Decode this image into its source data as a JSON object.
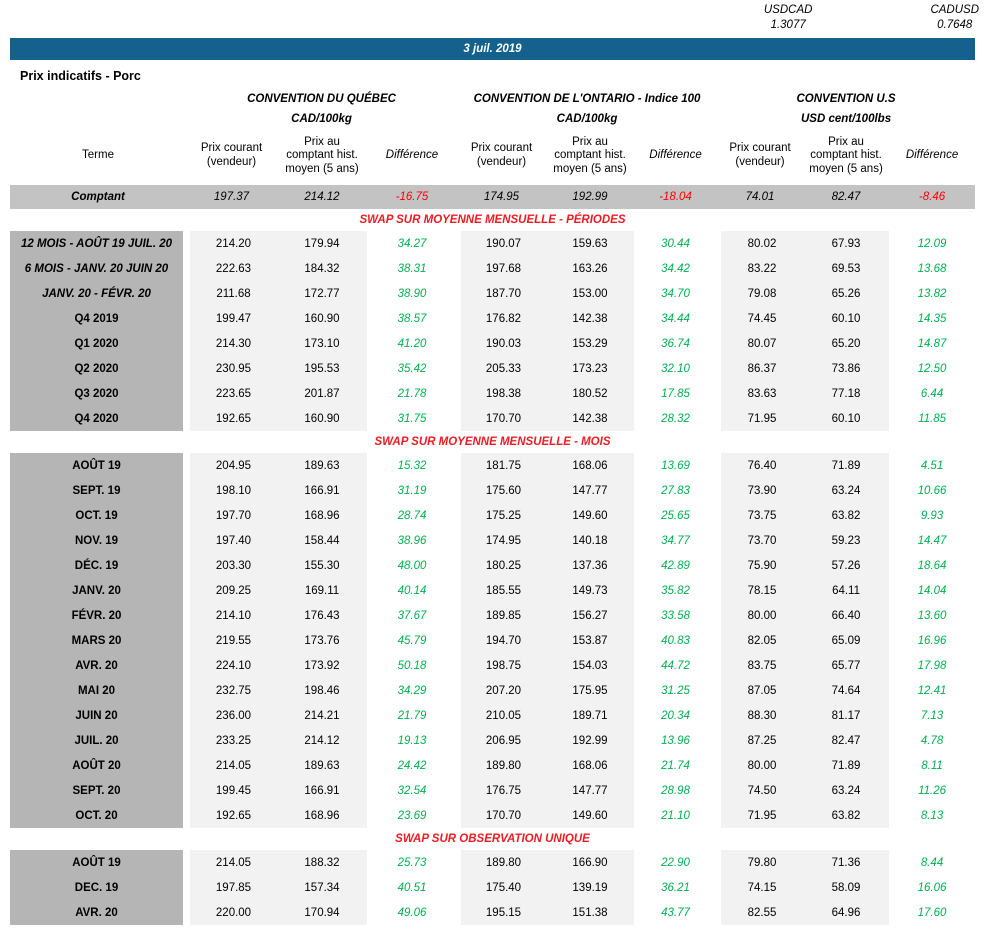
{
  "fx": [
    {
      "label": "USDCAD",
      "value": "1.3077"
    },
    {
      "label": "CADUSD",
      "value": "0.7648"
    }
  ],
  "date_bar": "3 juil. 2019",
  "page_title": "Prix indicatifs - Porc",
  "colors": {
    "header_blue": "#15618e",
    "section_red": "#ed1c24",
    "negative_red": "#ff0000",
    "positive_green": "#00b050",
    "terme_grey": "#b5b5b5",
    "comptant_grey": "#c3c3c3",
    "cell_grey": "#f2f2f2"
  },
  "table": {
    "terme_header": "Terme",
    "groups": [
      {
        "title": "CONVENTION DU QUÉBEC",
        "unit": "CAD/100kg"
      },
      {
        "title": "CONVENTION DE L'ONTARIO - Indice 100",
        "unit": "CAD/100kg"
      },
      {
        "title": "CONVENTION U.S",
        "unit": "USD cent/100lbs"
      }
    ],
    "sub_headers": [
      "Prix courant (vendeur)",
      "Prix au comptant hist. moyen (5 ans)",
      "Différence"
    ],
    "comptant": {
      "terme": "Comptant",
      "values": [
        "197.37",
        "214.12",
        "-16.75",
        "174.95",
        "192.99",
        "-18.04",
        "74.01",
        "82.47",
        "-8.46"
      ]
    },
    "sections": [
      {
        "title": "SWAP SUR MOYENNE MENSUELLE - PÉRIODES",
        "rows": [
          {
            "terme": "12 MOIS -  AOÛT 19 JUIL. 20",
            "italic": true,
            "values": [
              "214.20",
              "179.94",
              "34.27",
              "190.07",
              "159.63",
              "30.44",
              "80.02",
              "67.93",
              "12.09"
            ]
          },
          {
            "terme": "6 MOIS -  JANV. 20 JUIN 20",
            "italic": true,
            "values": [
              "222.63",
              "184.32",
              "38.31",
              "197.68",
              "163.26",
              "34.42",
              "83.22",
              "69.53",
              "13.68"
            ]
          },
          {
            "terme": "JANV. 20 -  FÉVR. 20",
            "italic": true,
            "values": [
              "211.68",
              "172.77",
              "38.90",
              "187.70",
              "153.00",
              "34.70",
              "79.08",
              "65.26",
              "13.82"
            ]
          },
          {
            "terme": "Q4 2019",
            "italic": false,
            "values": [
              "199.47",
              "160.90",
              "38.57",
              "176.82",
              "142.38",
              "34.44",
              "74.45",
              "60.10",
              "14.35"
            ]
          },
          {
            "terme": "Q1 2020",
            "italic": false,
            "values": [
              "214.30",
              "173.10",
              "41.20",
              "190.03",
              "153.29",
              "36.74",
              "80.07",
              "65.20",
              "14.87"
            ]
          },
          {
            "terme": "Q2 2020",
            "italic": false,
            "values": [
              "230.95",
              "195.53",
              "35.42",
              "205.33",
              "173.23",
              "32.10",
              "86.37",
              "73.86",
              "12.50"
            ]
          },
          {
            "terme": "Q3 2020",
            "italic": false,
            "values": [
              "223.65",
              "201.87",
              "21.78",
              "198.38",
              "180.52",
              "17.85",
              "83.63",
              "77.18",
              "6.44"
            ]
          },
          {
            "terme": "Q4 2020",
            "italic": false,
            "values": [
              "192.65",
              "160.90",
              "31.75",
              "170.70",
              "142.38",
              "28.32",
              "71.95",
              "60.10",
              "11.85"
            ]
          }
        ]
      },
      {
        "title": "SWAP SUR MOYENNE MENSUELLE - MOIS",
        "rows": [
          {
            "terme": "AOÛT 19",
            "italic": false,
            "values": [
              "204.95",
              "189.63",
              "15.32",
              "181.75",
              "168.06",
              "13.69",
              "76.40",
              "71.89",
              "4.51"
            ]
          },
          {
            "terme": "SEPT. 19",
            "italic": false,
            "values": [
              "198.10",
              "166.91",
              "31.19",
              "175.60",
              "147.77",
              "27.83",
              "73.90",
              "63.24",
              "10.66"
            ]
          },
          {
            "terme": "OCT. 19",
            "italic": false,
            "values": [
              "197.70",
              "168.96",
              "28.74",
              "175.25",
              "149.60",
              "25.65",
              "73.75",
              "63.82",
              "9.93"
            ]
          },
          {
            "terme": "NOV. 19",
            "italic": false,
            "values": [
              "197.40",
              "158.44",
              "38.96",
              "174.95",
              "140.18",
              "34.77",
              "73.70",
              "59.23",
              "14.47"
            ]
          },
          {
            "terme": "DÉC. 19",
            "italic": false,
            "values": [
              "203.30",
              "155.30",
              "48.00",
              "180.25",
              "137.36",
              "42.89",
              "75.90",
              "57.26",
              "18.64"
            ]
          },
          {
            "terme": "JANV. 20",
            "italic": false,
            "values": [
              "209.25",
              "169.11",
              "40.14",
              "185.55",
              "149.73",
              "35.82",
              "78.15",
              "64.11",
              "14.04"
            ]
          },
          {
            "terme": "FÉVR. 20",
            "italic": false,
            "values": [
              "214.10",
              "176.43",
              "37.67",
              "189.85",
              "156.27",
              "33.58",
              "80.00",
              "66.40",
              "13.60"
            ]
          },
          {
            "terme": "MARS 20",
            "italic": false,
            "values": [
              "219.55",
              "173.76",
              "45.79",
              "194.70",
              "153.87",
              "40.83",
              "82.05",
              "65.09",
              "16.96"
            ]
          },
          {
            "terme": "AVR. 20",
            "italic": false,
            "values": [
              "224.10",
              "173.92",
              "50.18",
              "198.75",
              "154.03",
              "44.72",
              "83.75",
              "65.77",
              "17.98"
            ]
          },
          {
            "terme": "MAI 20",
            "italic": false,
            "values": [
              "232.75",
              "198.46",
              "34.29",
              "207.20",
              "175.95",
              "31.25",
              "87.05",
              "74.64",
              "12.41"
            ]
          },
          {
            "terme": "JUIN 20",
            "italic": false,
            "values": [
              "236.00",
              "214.21",
              "21.79",
              "210.05",
              "189.71",
              "20.34",
              "88.30",
              "81.17",
              "7.13"
            ]
          },
          {
            "terme": "JUIL. 20",
            "italic": false,
            "values": [
              "233.25",
              "214.12",
              "19.13",
              "206.95",
              "192.99",
              "13.96",
              "87.25",
              "82.47",
              "4.78"
            ]
          },
          {
            "terme": "AOÛT 20",
            "italic": false,
            "values": [
              "214.05",
              "189.63",
              "24.42",
              "189.80",
              "168.06",
              "21.74",
              "80.00",
              "71.89",
              "8.11"
            ]
          },
          {
            "terme": "SEPT. 20",
            "italic": false,
            "values": [
              "199.45",
              "166.91",
              "32.54",
              "176.75",
              "147.77",
              "28.98",
              "74.50",
              "63.24",
              "11.26"
            ]
          },
          {
            "terme": "OCT. 20",
            "italic": false,
            "values": [
              "192.65",
              "168.96",
              "23.69",
              "170.70",
              "149.60",
              "21.10",
              "71.95",
              "63.82",
              "8.13"
            ]
          }
        ]
      },
      {
        "title": "SWAP SUR OBSERVATION UNIQUE",
        "rows": [
          {
            "terme": "AOÛT 19",
            "italic": false,
            "values": [
              "214.05",
              "188.32",
              "25.73",
              "189.80",
              "166.90",
              "22.90",
              "79.80",
              "71.36",
              "8.44"
            ]
          },
          {
            "terme": "DEC. 19",
            "italic": false,
            "values": [
              "197.85",
              "157.34",
              "40.51",
              "175.40",
              "139.19",
              "36.21",
              "74.15",
              "58.09",
              "16.06"
            ]
          },
          {
            "terme": "AVR. 20",
            "italic": false,
            "values": [
              "220.00",
              "170.94",
              "49.06",
              "195.15",
              "151.38",
              "43.77",
              "82.55",
              "64.96",
              "17.60"
            ]
          }
        ]
      }
    ]
  }
}
